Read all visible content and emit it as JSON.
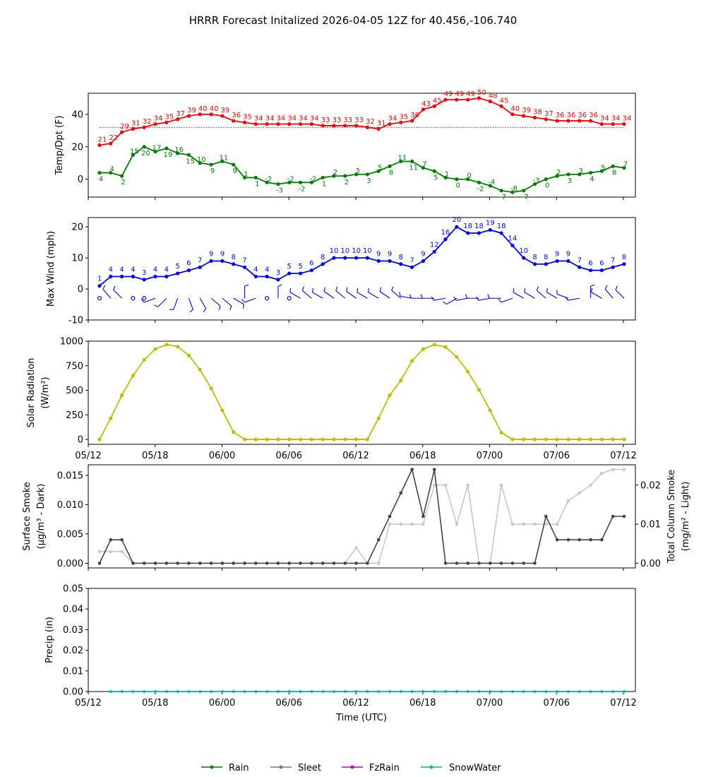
{
  "title": "HRRR Forecast Initalized 2026-04-05 12Z for 40.456,-106.740",
  "x_tick_labels": [
    "05/12",
    "05/18",
    "06/00",
    "06/06",
    "06/12",
    "06/18",
    "07/00",
    "07/06",
    "07/12"
  ],
  "x_label": "Time (UTC)",
  "colors": {
    "temp": "#ff0000",
    "dewpoint": "#008000",
    "wind": "#0000ff",
    "solar": "#bfbf00",
    "smoke_dark": "#444444",
    "smoke_light": "#c8c8c8",
    "rain": "#008000",
    "sleet": "#8070a0",
    "fzrain": "#c000c0",
    "snow": "#00b8c8"
  },
  "legend": {
    "rain": "Rain",
    "sleet": "Sleet",
    "fzrain": "FzRain",
    "snow": "SnowWater"
  },
  "chart_data": [
    {
      "type": "line",
      "title": "",
      "ylabel": "Temp/Dpt (F)",
      "ylim": [
        -11,
        53
      ],
      "y_ticks": [
        0,
        20,
        40
      ],
      "x_hours": "0..48 (hours after 05/12 12Z... plotted from 05/13 14Z offset)",
      "series": [
        {
          "name": "Temp",
          "values": [
            21,
            22,
            29,
            31,
            32,
            34,
            35,
            37,
            39,
            40,
            40,
            39,
            36,
            35,
            34,
            34,
            34,
            34,
            34,
            34,
            33,
            33,
            33,
            33,
            32,
            31,
            34,
            35,
            36,
            43,
            45,
            49,
            49,
            49,
            50,
            48,
            45,
            40,
            39,
            38,
            37,
            36,
            36,
            36,
            36,
            34,
            34,
            34
          ]
        },
        {
          "name": "Dewpoint",
          "values": [
            4,
            4,
            2,
            15,
            20,
            17,
            19,
            16,
            15,
            10,
            9,
            11,
            9,
            1,
            1,
            -2,
            -3,
            -2,
            -2,
            -2,
            1,
            2,
            2,
            3,
            3,
            5,
            8,
            11,
            11,
            7,
            5,
            1,
            0,
            0,
            -2,
            -4,
            -7,
            -8,
            -7,
            -3,
            0,
            2,
            3,
            3,
            4,
            5,
            8,
            7
          ]
        }
      ],
      "labels_temp": [
        "21",
        "22",
        "29",
        "31",
        "32",
        "34",
        "35",
        "37",
        "39",
        "40",
        "40",
        "39",
        "36",
        "35",
        "34",
        "34",
        "34",
        "34",
        "34",
        "34",
        "33",
        "33",
        "33",
        "33",
        "32",
        "31",
        "34",
        "35",
        "36",
        "43",
        "45",
        "49",
        "49",
        "49",
        "50",
        "48",
        "45",
        "40",
        "39",
        "38",
        "37",
        "36",
        "36",
        "36",
        "36",
        "34",
        "34",
        "34"
      ],
      "labels_dew": [
        "4",
        "4",
        "2",
        "15",
        "20",
        "17",
        "19",
        "16",
        "15",
        "10",
        "9",
        "11",
        "9",
        "1",
        "1",
        "-2",
        "-3",
        "-2",
        "-2",
        "-2",
        "1",
        "2",
        "2",
        "3",
        "3",
        "5",
        "8",
        "11",
        "11",
        "7",
        "5",
        "1",
        "0",
        "0",
        "-2",
        "-4",
        "-7",
        "-8",
        "-7",
        "-3",
        "0",
        "2",
        "3",
        "3",
        "4",
        "5",
        "8",
        "7"
      ],
      "freezing_line": 32
    },
    {
      "type": "line",
      "ylabel": "Max Wind (mph)",
      "ylim": [
        -10,
        23
      ],
      "y_ticks": [
        -10,
        0,
        10,
        20
      ],
      "values": [
        1,
        4,
        4,
        4,
        3,
        4,
        4,
        5,
        6,
        7,
        9,
        9,
        8,
        7,
        4,
        4,
        3,
        5,
        5,
        6,
        8,
        10,
        10,
        10,
        10,
        9,
        9,
        8,
        7,
        9,
        12,
        16,
        20,
        18,
        18,
        19,
        18,
        14,
        10,
        8,
        8,
        9,
        9,
        7,
        6,
        6,
        7,
        8
      ],
      "labels": [
        "1",
        "4",
        "4",
        "4",
        "3",
        "4",
        "4",
        "5",
        "6",
        "7",
        "9",
        "9",
        "8",
        "7",
        "4",
        "4",
        "3",
        "5",
        "5",
        "6",
        "8",
        "10",
        "10",
        "10",
        "10",
        "9",
        "9",
        "8",
        "7",
        "9",
        "12",
        "16",
        "20",
        "18",
        "18",
        "19",
        "18",
        "14",
        "10",
        "8",
        "8",
        "9",
        "9",
        "7",
        "6",
        "6",
        "7",
        "8"
      ]
    },
    {
      "type": "line",
      "ylabel": "Solar Radiation",
      "ylabel2": "(W/m²)",
      "ylim": [
        -50,
        1000
      ],
      "y_ticks": [
        0,
        250,
        500,
        750,
        1000
      ],
      "values": [
        0,
        215,
        450,
        650,
        810,
        920,
        965,
        945,
        855,
        710,
        520,
        295,
        75,
        0,
        0,
        0,
        0,
        0,
        0,
        0,
        0,
        0,
        0,
        0,
        0,
        215,
        450,
        600,
        800,
        920,
        965,
        940,
        840,
        690,
        505,
        295,
        70,
        0,
        0,
        0,
        0,
        0,
        0,
        0,
        0,
        0,
        0,
        0
      ]
    },
    {
      "type": "line",
      "ylabel": "Surface Smoke",
      "ylabel_sub": "(μg/m³ - Dark)",
      "ylabel_right": "Total Column Smoke",
      "ylabel_right_sub": "(mg/m² - Light)",
      "ylim": [
        -0.0008,
        0.0168
      ],
      "y_ticks": [
        "0.000",
        "0.005",
        "0.010",
        "0.015"
      ],
      "y_ticks_right": [
        "0.00",
        "0.01",
        "0.02"
      ],
      "ylim_right": [
        -0.0012,
        0.0252
      ],
      "series": [
        {
          "name": "Surface Smoke",
          "values": [
            0,
            0.004,
            0.004,
            0,
            0,
            0,
            0,
            0,
            0,
            0,
            0,
            0,
            0,
            0,
            0,
            0,
            0,
            0,
            0,
            0,
            0,
            0,
            0,
            0,
            0,
            0.004,
            0.008,
            0.012,
            0.016,
            0.008,
            0.016,
            0,
            0,
            0,
            0,
            0,
            0,
            0,
            0,
            0,
            0.008,
            0.004,
            0.004,
            0.004,
            0.004,
            0.004,
            0.008,
            0.008
          ]
        },
        {
          "name": "Total Column Smoke",
          "values": [
            0.003,
            0.003,
            0.003,
            0,
            0,
            0,
            0,
            0,
            0,
            0,
            0,
            0,
            0,
            0,
            0,
            0,
            0,
            0,
            0,
            0,
            0,
            0,
            0,
            0.004,
            0,
            0,
            0.01,
            0.01,
            0.01,
            0.01,
            0.02,
            0.02,
            0.01,
            0.02,
            0,
            0,
            0.02,
            0.01,
            0.01,
            0.01,
            0.01,
            0.01,
            0.016,
            0.018,
            0.02,
            0.023,
            0.024,
            0.024
          ]
        }
      ]
    },
    {
      "type": "line",
      "ylabel": "Precip (in)",
      "ylim": [
        0,
        0.05
      ],
      "y_ticks": [
        "0.00",
        "0.01",
        "0.02",
        "0.03",
        "0.04",
        "0.05"
      ],
      "series": [
        {
          "name": "Rain",
          "values": [
            0,
            0,
            0,
            0,
            0,
            0,
            0,
            0,
            0,
            0,
            0,
            0,
            0,
            0,
            0,
            0,
            0,
            0,
            0,
            0,
            0,
            0,
            0,
            0,
            0,
            0,
            0,
            0,
            0,
            0,
            0,
            0,
            0,
            0,
            0,
            0,
            0,
            0,
            0,
            0,
            0,
            0,
            0,
            0,
            0,
            0,
            0
          ]
        },
        {
          "name": "SnowWater",
          "values": [
            0,
            0,
            0,
            0,
            0,
            0,
            0,
            0,
            0,
            0,
            0,
            0,
            0,
            0,
            0,
            0,
            0,
            0,
            0,
            0,
            0,
            0,
            0,
            0,
            0,
            0,
            0,
            0,
            0,
            0,
            0,
            0,
            0,
            0,
            0,
            0,
            0,
            0,
            0,
            0,
            0,
            0,
            0,
            0,
            0,
            0,
            0
          ]
        }
      ]
    }
  ],
  "wind_barbs": {
    "calm_hours": [
      0,
      3,
      4,
      15,
      17
    ],
    "directions_deg": [
      0,
      320,
      315,
      0,
      0,
      250,
      225,
      200,
      160,
      150,
      130,
      130,
      120,
      0,
      250,
      0,
      0,
      290,
      300,
      310,
      300,
      305,
      310,
      305,
      300,
      300,
      305,
      310,
      280,
      270,
      270,
      260,
      240,
      260,
      270,
      260,
      270,
      250,
      300,
      300,
      310,
      300,
      290,
      260,
      0,
      300,
      320,
      315
    ]
  }
}
